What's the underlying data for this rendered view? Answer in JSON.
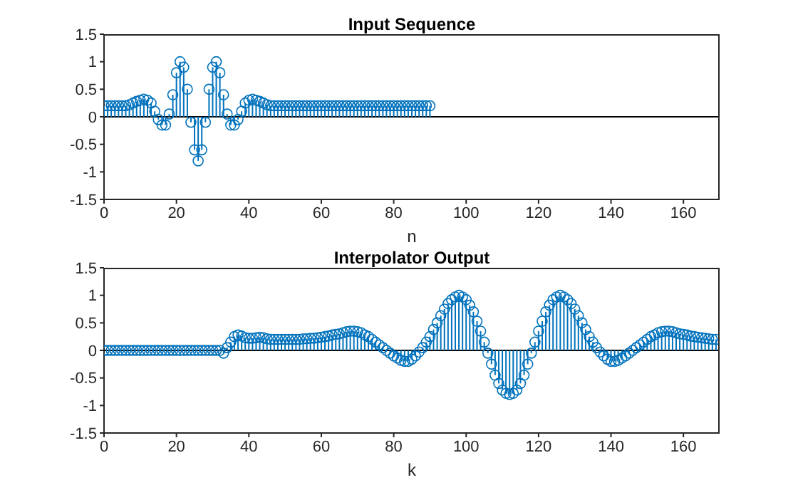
{
  "chart_data": [
    {
      "type": "lollipop",
      "title": "Input Sequence",
      "xlabel": "n",
      "xlim": [
        0,
        170
      ],
      "xticks": [
        0,
        20,
        40,
        60,
        80,
        100,
        120,
        140,
        160
      ],
      "ylim": [
        -1.5,
        1.5
      ],
      "yticks": [
        -1.5,
        -1,
        -0.5,
        0,
        0.5,
        1,
        1.5
      ],
      "marker": "circle",
      "ref_lines": [
        {
          "axis": "y",
          "value": 0,
          "color": "#000000"
        }
      ],
      "series": [
        {
          "color": "#0072bd",
          "x": [
            0,
            1,
            2,
            3,
            4,
            5,
            6,
            7,
            8,
            9,
            10,
            11,
            12,
            13,
            14,
            15,
            16,
            17,
            18,
            19,
            20,
            21,
            22,
            23,
            24,
            25,
            26,
            27,
            28,
            29,
            30,
            31,
            32,
            33,
            34,
            35,
            36,
            37,
            38,
            39,
            40,
            41,
            42,
            43,
            44,
            45,
            46,
            47,
            48,
            49,
            50,
            51,
            52,
            53,
            54,
            55,
            56,
            57,
            58,
            59,
            60,
            61,
            62,
            63,
            64,
            65,
            66,
            67,
            68,
            69,
            70,
            71,
            72,
            73,
            74,
            75,
            76,
            77,
            78,
            79,
            80,
            81,
            82,
            83,
            84,
            85,
            86,
            87,
            88,
            89,
            90
          ],
          "values": [
            0.2,
            0.2,
            0.2,
            0.2,
            0.2,
            0.2,
            0.2,
            0.22,
            0.25,
            0.28,
            0.3,
            0.32,
            0.3,
            0.25,
            0.1,
            -0.05,
            -0.15,
            -0.15,
            0.05,
            0.4,
            0.8,
            1.0,
            0.9,
            0.5,
            -0.1,
            -0.6,
            -0.8,
            -0.6,
            -0.1,
            0.5,
            0.9,
            1.0,
            0.8,
            0.4,
            0.05,
            -0.15,
            -0.15,
            -0.05,
            0.1,
            0.25,
            0.3,
            0.32,
            0.3,
            0.28,
            0.25,
            0.22,
            0.2,
            0.2,
            0.2,
            0.2,
            0.2,
            0.2,
            0.2,
            0.2,
            0.2,
            0.2,
            0.2,
            0.2,
            0.2,
            0.2,
            0.2,
            0.2,
            0.2,
            0.2,
            0.2,
            0.2,
            0.2,
            0.2,
            0.2,
            0.2,
            0.2,
            0.2,
            0.2,
            0.2,
            0.2,
            0.2,
            0.2,
            0.2,
            0.2,
            0.2,
            0.2,
            0.2,
            0.2,
            0.2,
            0.2,
            0.2,
            0.2,
            0.2,
            0.2,
            0.2,
            0.2
          ]
        }
      ]
    },
    {
      "type": "lollipop",
      "title": "Interpolator Output",
      "xlabel": "k",
      "xlim": [
        0,
        170
      ],
      "xticks": [
        0,
        20,
        40,
        60,
        80,
        100,
        120,
        140,
        160
      ],
      "ylim": [
        -1.5,
        1.5
      ],
      "yticks": [
        -1.5,
        -1,
        -0.5,
        0,
        0.5,
        1,
        1.5
      ],
      "marker": "circle",
      "ref_lines": [
        {
          "axis": "y",
          "value": 0,
          "color": "#000000"
        }
      ],
      "series": [
        {
          "color": "#0072bd",
          "x": [
            0,
            1,
            2,
            3,
            4,
            5,
            6,
            7,
            8,
            9,
            10,
            11,
            12,
            13,
            14,
            15,
            16,
            17,
            18,
            19,
            20,
            21,
            22,
            23,
            24,
            25,
            26,
            27,
            28,
            29,
            30,
            31,
            32,
            33,
            34,
            35,
            36,
            37,
            38,
            39,
            40,
            41,
            42,
            43,
            44,
            45,
            46,
            47,
            48,
            49,
            50,
            51,
            52,
            53,
            54,
            55,
            56,
            57,
            58,
            59,
            60,
            61,
            62,
            63,
            64,
            65,
            66,
            67,
            68,
            69,
            70,
            71,
            72,
            73,
            74,
            75,
            76,
            77,
            78,
            79,
            80,
            81,
            82,
            83,
            84,
            85,
            86,
            87,
            88,
            89,
            90,
            91,
            92,
            93,
            94,
            95,
            96,
            97,
            98,
            99,
            100,
            101,
            102,
            103,
            104,
            105,
            106,
            107,
            108,
            109,
            110,
            111,
            112,
            113,
            114,
            115,
            116,
            117,
            118,
            119,
            120,
            121,
            122,
            123,
            124,
            125,
            126,
            127,
            128,
            129,
            130,
            131,
            132,
            133,
            134,
            135,
            136,
            137,
            138,
            139,
            140,
            141,
            142,
            143,
            144,
            145,
            146,
            147,
            148,
            149,
            150,
            151,
            152,
            153,
            154,
            155,
            156,
            157,
            158,
            159,
            160,
            161,
            162,
            163,
            164,
            165,
            166,
            167,
            168,
            169
          ],
          "values": [
            0,
            0,
            0,
            0,
            0,
            0,
            0,
            0,
            0,
            0,
            0,
            0,
            0,
            0,
            0,
            0,
            0,
            0,
            0,
            0,
            0,
            0,
            0,
            0,
            0,
            0,
            0,
            0,
            0,
            0,
            0,
            0,
            0,
            -0.05,
            0.05,
            0.15,
            0.25,
            0.28,
            0.26,
            0.23,
            0.22,
            0.22,
            0.23,
            0.24,
            0.23,
            0.21,
            0.2,
            0.2,
            0.2,
            0.2,
            0.2,
            0.2,
            0.2,
            0.2,
            0.2,
            0.21,
            0.21,
            0.22,
            0.22,
            0.23,
            0.24,
            0.25,
            0.26,
            0.28,
            0.29,
            0.3,
            0.32,
            0.34,
            0.35,
            0.35,
            0.34,
            0.32,
            0.28,
            0.25,
            0.2,
            0.15,
            0.1,
            0.05,
            0,
            -0.05,
            -0.1,
            -0.14,
            -0.18,
            -0.2,
            -0.2,
            -0.16,
            -0.1,
            -0.03,
            0.05,
            0.15,
            0.25,
            0.38,
            0.5,
            0.63,
            0.75,
            0.85,
            0.92,
            0.97,
            1.0,
            0.97,
            0.92,
            0.82,
            0.7,
            0.53,
            0.35,
            0.15,
            -0.05,
            -0.25,
            -0.45,
            -0.6,
            -0.72,
            -0.78,
            -0.8,
            -0.78,
            -0.72,
            -0.6,
            -0.45,
            -0.25,
            -0.05,
            0.15,
            0.35,
            0.53,
            0.7,
            0.82,
            0.92,
            0.97,
            1.0,
            0.97,
            0.92,
            0.85,
            0.75,
            0.63,
            0.5,
            0.38,
            0.25,
            0.15,
            0.05,
            -0.03,
            -0.1,
            -0.16,
            -0.2,
            -0.2,
            -0.18,
            -0.14,
            -0.1,
            -0.05,
            0,
            0.05,
            0.1,
            0.15,
            0.2,
            0.25,
            0.28,
            0.32,
            0.34,
            0.35,
            0.35,
            0.34,
            0.32,
            0.3,
            0.29,
            0.28,
            0.26,
            0.25,
            0.24,
            0.23,
            0.22,
            0.21,
            0.2,
            0.2
          ]
        }
      ]
    }
  ]
}
